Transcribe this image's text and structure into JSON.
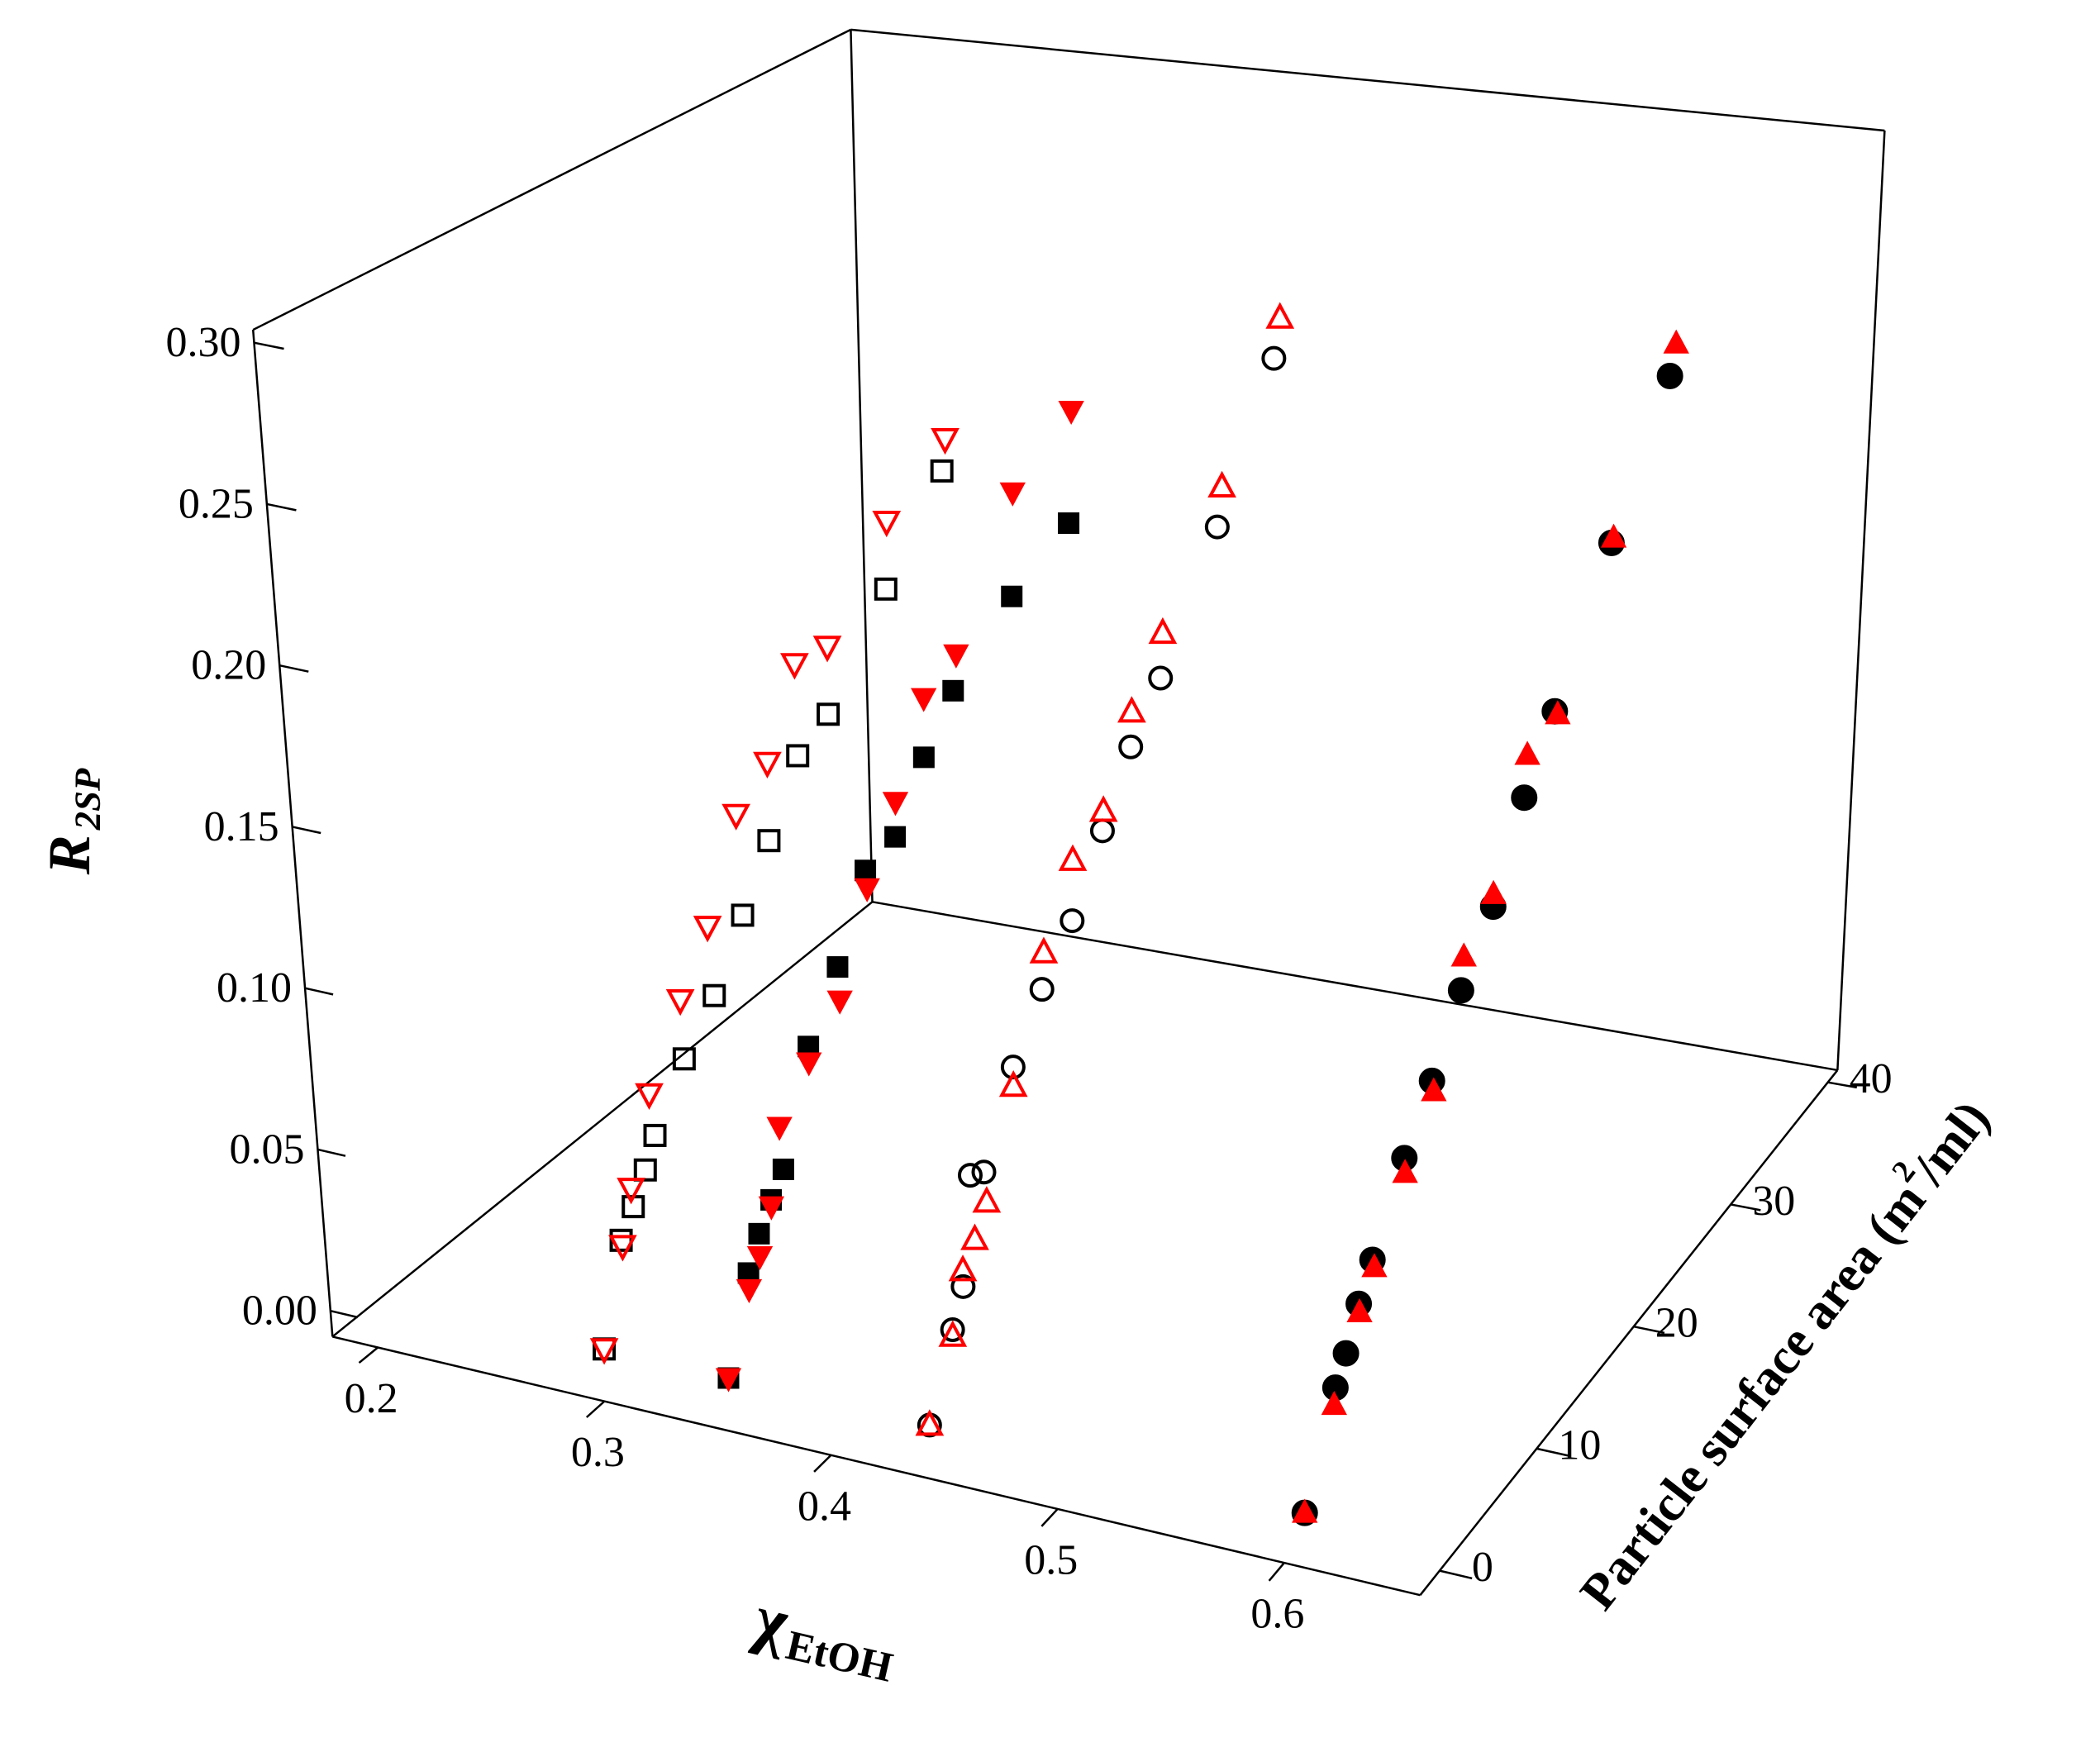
{
  "chart_data": {
    "type": "scatter3d",
    "xlabel": {
      "text": "χ",
      "sub": "EtOH"
    },
    "ylabel": {
      "text": "Particle surface area (m",
      "sup": "2",
      "after": "/ml)"
    },
    "zlabel": {
      "text": "R",
      "sub": "2SP"
    },
    "xlim": [
      0.18,
      0.66
    ],
    "ylim": [
      -2,
      41
    ],
    "zlim": [
      -0.008,
      0.304
    ],
    "xticks": [
      0.2,
      0.3,
      0.4,
      0.5,
      0.6
    ],
    "yticks": [
      0,
      10,
      20,
      30,
      40
    ],
    "zticks": [
      {
        "value": 0,
        "label": "0.00"
      },
      {
        "value": 0.05,
        "label": "0.05"
      },
      {
        "value": 0.1,
        "label": "0.10"
      },
      {
        "value": 0.15,
        "label": "0.15"
      },
      {
        "value": 0.2,
        "label": "0.20"
      },
      {
        "value": 0.25,
        "label": "0.25"
      },
      {
        "value": 0.3,
        "label": "0.30"
      }
    ],
    "grid": false,
    "series": [
      {
        "color": "#000000",
        "marker": "square",
        "filled": false,
        "x": [
          0.29,
          0.29,
          0.29,
          0.29,
          0.29,
          0.29,
          0.29,
          0.29,
          0.29,
          0.29,
          0.29,
          0.29,
          0.29
        ],
        "y": [
          0,
          1.8,
          2.9,
          4.0,
          4.9,
          7.5,
          10.1,
          12.6,
          14.9,
          17.4,
          19.9,
          24.7,
          29.3
        ],
        "z": [
          0,
          0.028,
          0.035,
          0.043,
          0.051,
          0.067,
          0.079,
          0.097,
          0.114,
          0.134,
          0.14,
          0.167,
          0.193
        ]
      },
      {
        "color": "#ff0000",
        "marker": "triangle-down",
        "filled": false,
        "x": [
          0.29,
          0.29,
          0.29,
          0.29,
          0.29,
          0.29,
          0.29,
          0.29,
          0.29,
          0.29,
          0.29,
          0.29
        ],
        "y": [
          0,
          1.9,
          2.8,
          4.6,
          7.4,
          9.8,
          12.4,
          15.0,
          17.4,
          20.0,
          24.9,
          29.6
        ],
        "z": [
          0,
          0.026,
          0.041,
          0.065,
          0.086,
          0.102,
          0.13,
          0.139,
          0.164,
          0.162,
          0.189,
          0.203
        ]
      },
      {
        "color": "#000000",
        "marker": "square",
        "filled": true,
        "x": [
          0.345,
          0.345,
          0.345,
          0.345,
          0.345,
          0.345,
          0.345,
          0.345,
          0.345,
          0.345,
          0.345,
          0.345,
          0.345
        ],
        "y": [
          0,
          2.0,
          3.0,
          4.1,
          5.2,
          7.6,
          10.2,
          12.7,
          15.2,
          17.7,
          20.2,
          25.1,
          29.8
        ],
        "z": [
          0,
          0.026,
          0.035,
          0.042,
          0.048,
          0.079,
          0.096,
          0.119,
          0.122,
          0.14,
          0.154,
          0.17,
          0.18
        ]
      },
      {
        "color": "#ff0000",
        "marker": "triangle-down",
        "filled": true,
        "x": [
          0.345,
          0.345,
          0.345,
          0.345,
          0.345,
          0.345,
          0.345,
          0.345,
          0.345,
          0.345,
          0.345,
          0.345,
          0.345
        ],
        "y": [
          0,
          2.0,
          3.0,
          4.1,
          5.0,
          7.6,
          10.3,
          12.8,
          15.3,
          17.8,
          20.5,
          25.3,
          30.1
        ],
        "z": [
          0,
          0.021,
          0.028,
          0.04,
          0.062,
          0.074,
          0.085,
          0.113,
          0.133,
          0.159,
          0.165,
          0.204,
          0.217
        ]
      },
      {
        "color": "#000000",
        "marker": "circle",
        "filled": false,
        "x": [
          0.434,
          0.434,
          0.434,
          0.434,
          0.434,
          0.434,
          0.434,
          0.434,
          0.434,
          0.434,
          0.434,
          0.434,
          0.434
        ],
        "y": [
          0,
          2.2,
          3.2,
          4.0,
          5.2,
          7.9,
          10.5,
          13.2,
          15.9,
          18.4,
          21.0,
          25.9,
          30.7
        ],
        "z": [
          0,
          0.022,
          0.032,
          0.064,
          0.061,
          0.085,
          0.101,
          0.114,
          0.134,
          0.153,
          0.167,
          0.201,
          0.242
        ]
      },
      {
        "color": "#ff0000",
        "marker": "triangle-up",
        "filled": false,
        "x": [
          0.434,
          0.434,
          0.434,
          0.434,
          0.434,
          0.434,
          0.434,
          0.434,
          0.434,
          0.434,
          0.434,
          0.434,
          0.434
        ],
        "y": [
          0,
          2.2,
          3.2,
          4.3,
          5.4,
          7.9,
          10.7,
          13.3,
          16.0,
          18.5,
          21.2,
          26.3,
          31.2
        ],
        "z": [
          0,
          0.02,
          0.037,
          0.043,
          0.051,
          0.079,
          0.112,
          0.133,
          0.14,
          0.164,
          0.181,
          0.213,
          0.254
        ]
      },
      {
        "color": "#000000",
        "marker": "circle",
        "filled": true,
        "x": [
          0.6,
          0.6,
          0.6,
          0.6,
          0.6,
          0.6,
          0.6,
          0.6,
          0.6,
          0.6,
          0.6,
          0.6,
          0.6
        ],
        "y": [
          0,
          2.9,
          3.9,
          5.1,
          6.4,
          9.4,
          12.0,
          14.7,
          17.7,
          20.5,
          23.3,
          28.4,
          33.6
        ],
        "z": [
          0,
          0.028,
          0.035,
          0.046,
          0.055,
          0.076,
          0.091,
          0.11,
          0.126,
          0.151,
          0.169,
          0.206,
          0.243
        ]
      },
      {
        "color": "#ff0000",
        "marker": "triangle-up",
        "filled": true,
        "x": [
          0.6,
          0.6,
          0.6,
          0.6,
          0.6,
          0.6,
          0.6,
          0.6,
          0.6,
          0.6,
          0.6,
          0.6
        ],
        "y": [
          0,
          2.8,
          5.2,
          6.6,
          9.5,
          12.2,
          14.9,
          17.7,
          20.7,
          23.6,
          28.6,
          34.1
        ],
        "z": [
          0,
          0.023,
          0.043,
          0.052,
          0.071,
          0.087,
          0.12,
          0.13,
          0.164,
          0.167,
          0.207,
          0.252
        ]
      }
    ]
  }
}
